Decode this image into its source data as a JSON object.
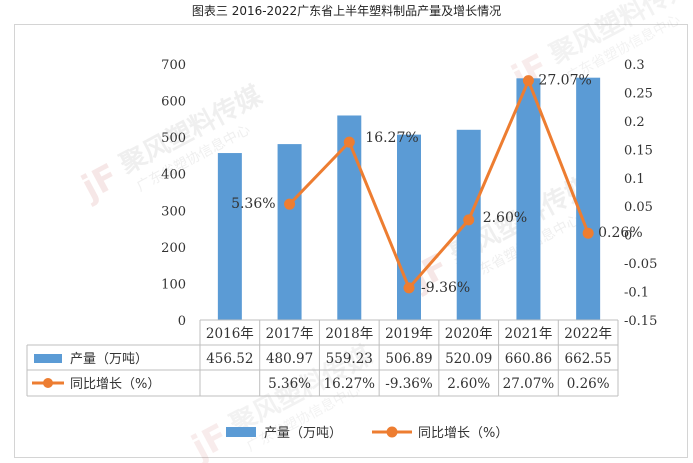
{
  "page_title": "图表三 2016-2022广东省上半年塑料制品产量及增长情况",
  "watermark": {
    "logo": "jF",
    "name": "聚风塑料传媒",
    "sub": "广东省塑协信息中心"
  },
  "colors": {
    "bar": "#5B9BD5",
    "line": "#ED7D31",
    "grid": "#d9d9d9",
    "text": "#333333"
  },
  "chart_data": {
    "type": "bar+line",
    "title": "图表三 2016-2022广东省上半年塑料制品产量及增长情况",
    "categories": [
      "2016年",
      "2017年",
      "2018年",
      "2019年",
      "2020年",
      "2021年",
      "2022年"
    ],
    "series": [
      {
        "name": "产量（万吨）",
        "type": "bar",
        "axis": "left",
        "values": [
          456.52,
          480.97,
          559.23,
          506.89,
          520.09,
          660.86,
          662.55
        ]
      },
      {
        "name": "同比增长（%）",
        "type": "line",
        "axis": "right",
        "values": [
          null,
          0.0536,
          0.1627,
          -0.0936,
          0.026,
          0.2707,
          0.0026
        ]
      }
    ],
    "data_labels": [
      "",
      "5.36%",
      "16.27%",
      "-9.36%",
      "2.60%",
      "27.07%",
      "0.26%"
    ],
    "y_left": {
      "min": 0,
      "max": 700,
      "ticks": [
        "0",
        "100",
        "200",
        "300",
        "400",
        "500",
        "600",
        "700"
      ]
    },
    "y_right": {
      "min": -0.15,
      "max": 0.3,
      "ticks": [
        "-0.15",
        "-0.1",
        "-0.05",
        "0",
        "0.05",
        "0.1",
        "0.15",
        "0.2",
        "0.25",
        "0.3"
      ]
    },
    "table": {
      "rows": [
        {
          "label": "产量（万吨）",
          "cells": [
            "456.52",
            "480.97",
            "559.23",
            "506.89",
            "520.09",
            "660.86",
            "662.55"
          ]
        },
        {
          "label": "同比增长（%）",
          "cells": [
            "",
            "5.36%",
            "16.27%",
            "-9.36%",
            "2.60%",
            "27.07%",
            "0.26%"
          ]
        }
      ]
    },
    "legend": [
      {
        "name": "产量（万吨）",
        "kind": "bar"
      },
      {
        "name": "同比增长（%）",
        "kind": "line"
      }
    ],
    "legend_position": "bottom"
  }
}
